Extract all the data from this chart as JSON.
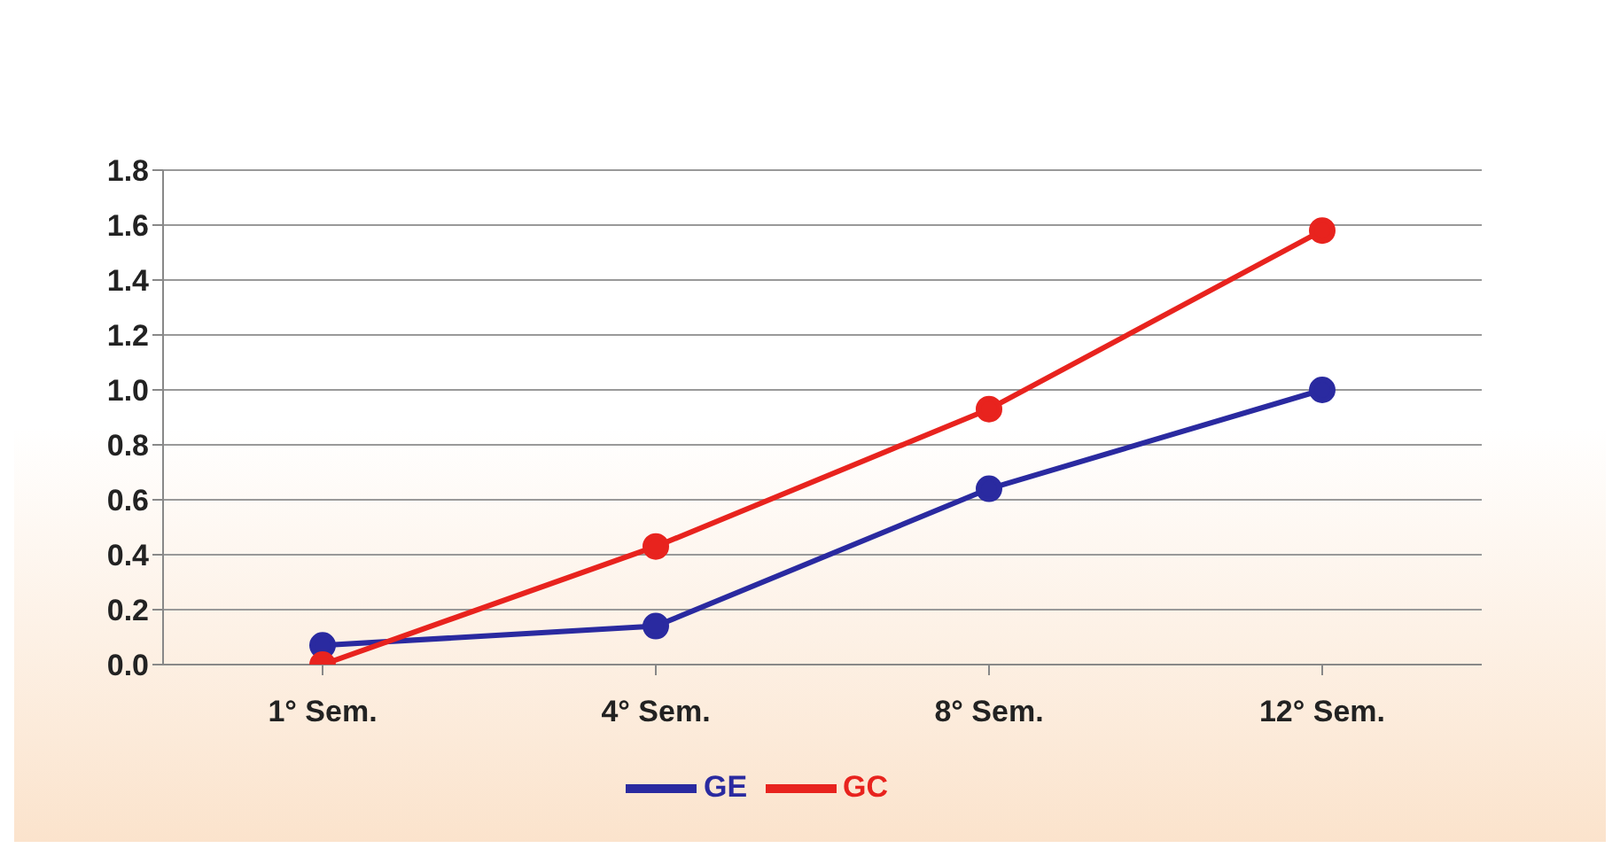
{
  "chart_data": {
    "type": "line",
    "categories": [
      "1° Sem.",
      "4° Sem.",
      "8° Sem.",
      "12° Sem."
    ],
    "series": [
      {
        "name": "GE",
        "color": "#2a2aa0",
        "values": [
          0.07,
          0.14,
          0.64,
          1.0
        ]
      },
      {
        "name": "GC",
        "color": "#e8231e",
        "values": [
          0.0,
          0.43,
          0.93,
          1.58
        ]
      }
    ],
    "ylim": [
      0,
      1.8
    ],
    "yticks": [
      {
        "value": 0,
        "label": "0.0"
      },
      {
        "value": 0.2,
        "label": "0.2"
      },
      {
        "value": 0.4,
        "label": "0.4"
      },
      {
        "value": 0.6,
        "label": "0.6"
      },
      {
        "value": 0.8,
        "label": "0.8"
      },
      {
        "value": 1,
        "label": "1.0"
      },
      {
        "value": 1.2,
        "label": "1.2"
      },
      {
        "value": 1.4,
        "label": "1.4"
      },
      {
        "value": 1.6,
        "label": "1.6"
      },
      {
        "value": 1.8,
        "label": "1.8"
      }
    ],
    "grid": "y",
    "legend": "bottom",
    "marker": "circle",
    "line_style": "solid"
  }
}
